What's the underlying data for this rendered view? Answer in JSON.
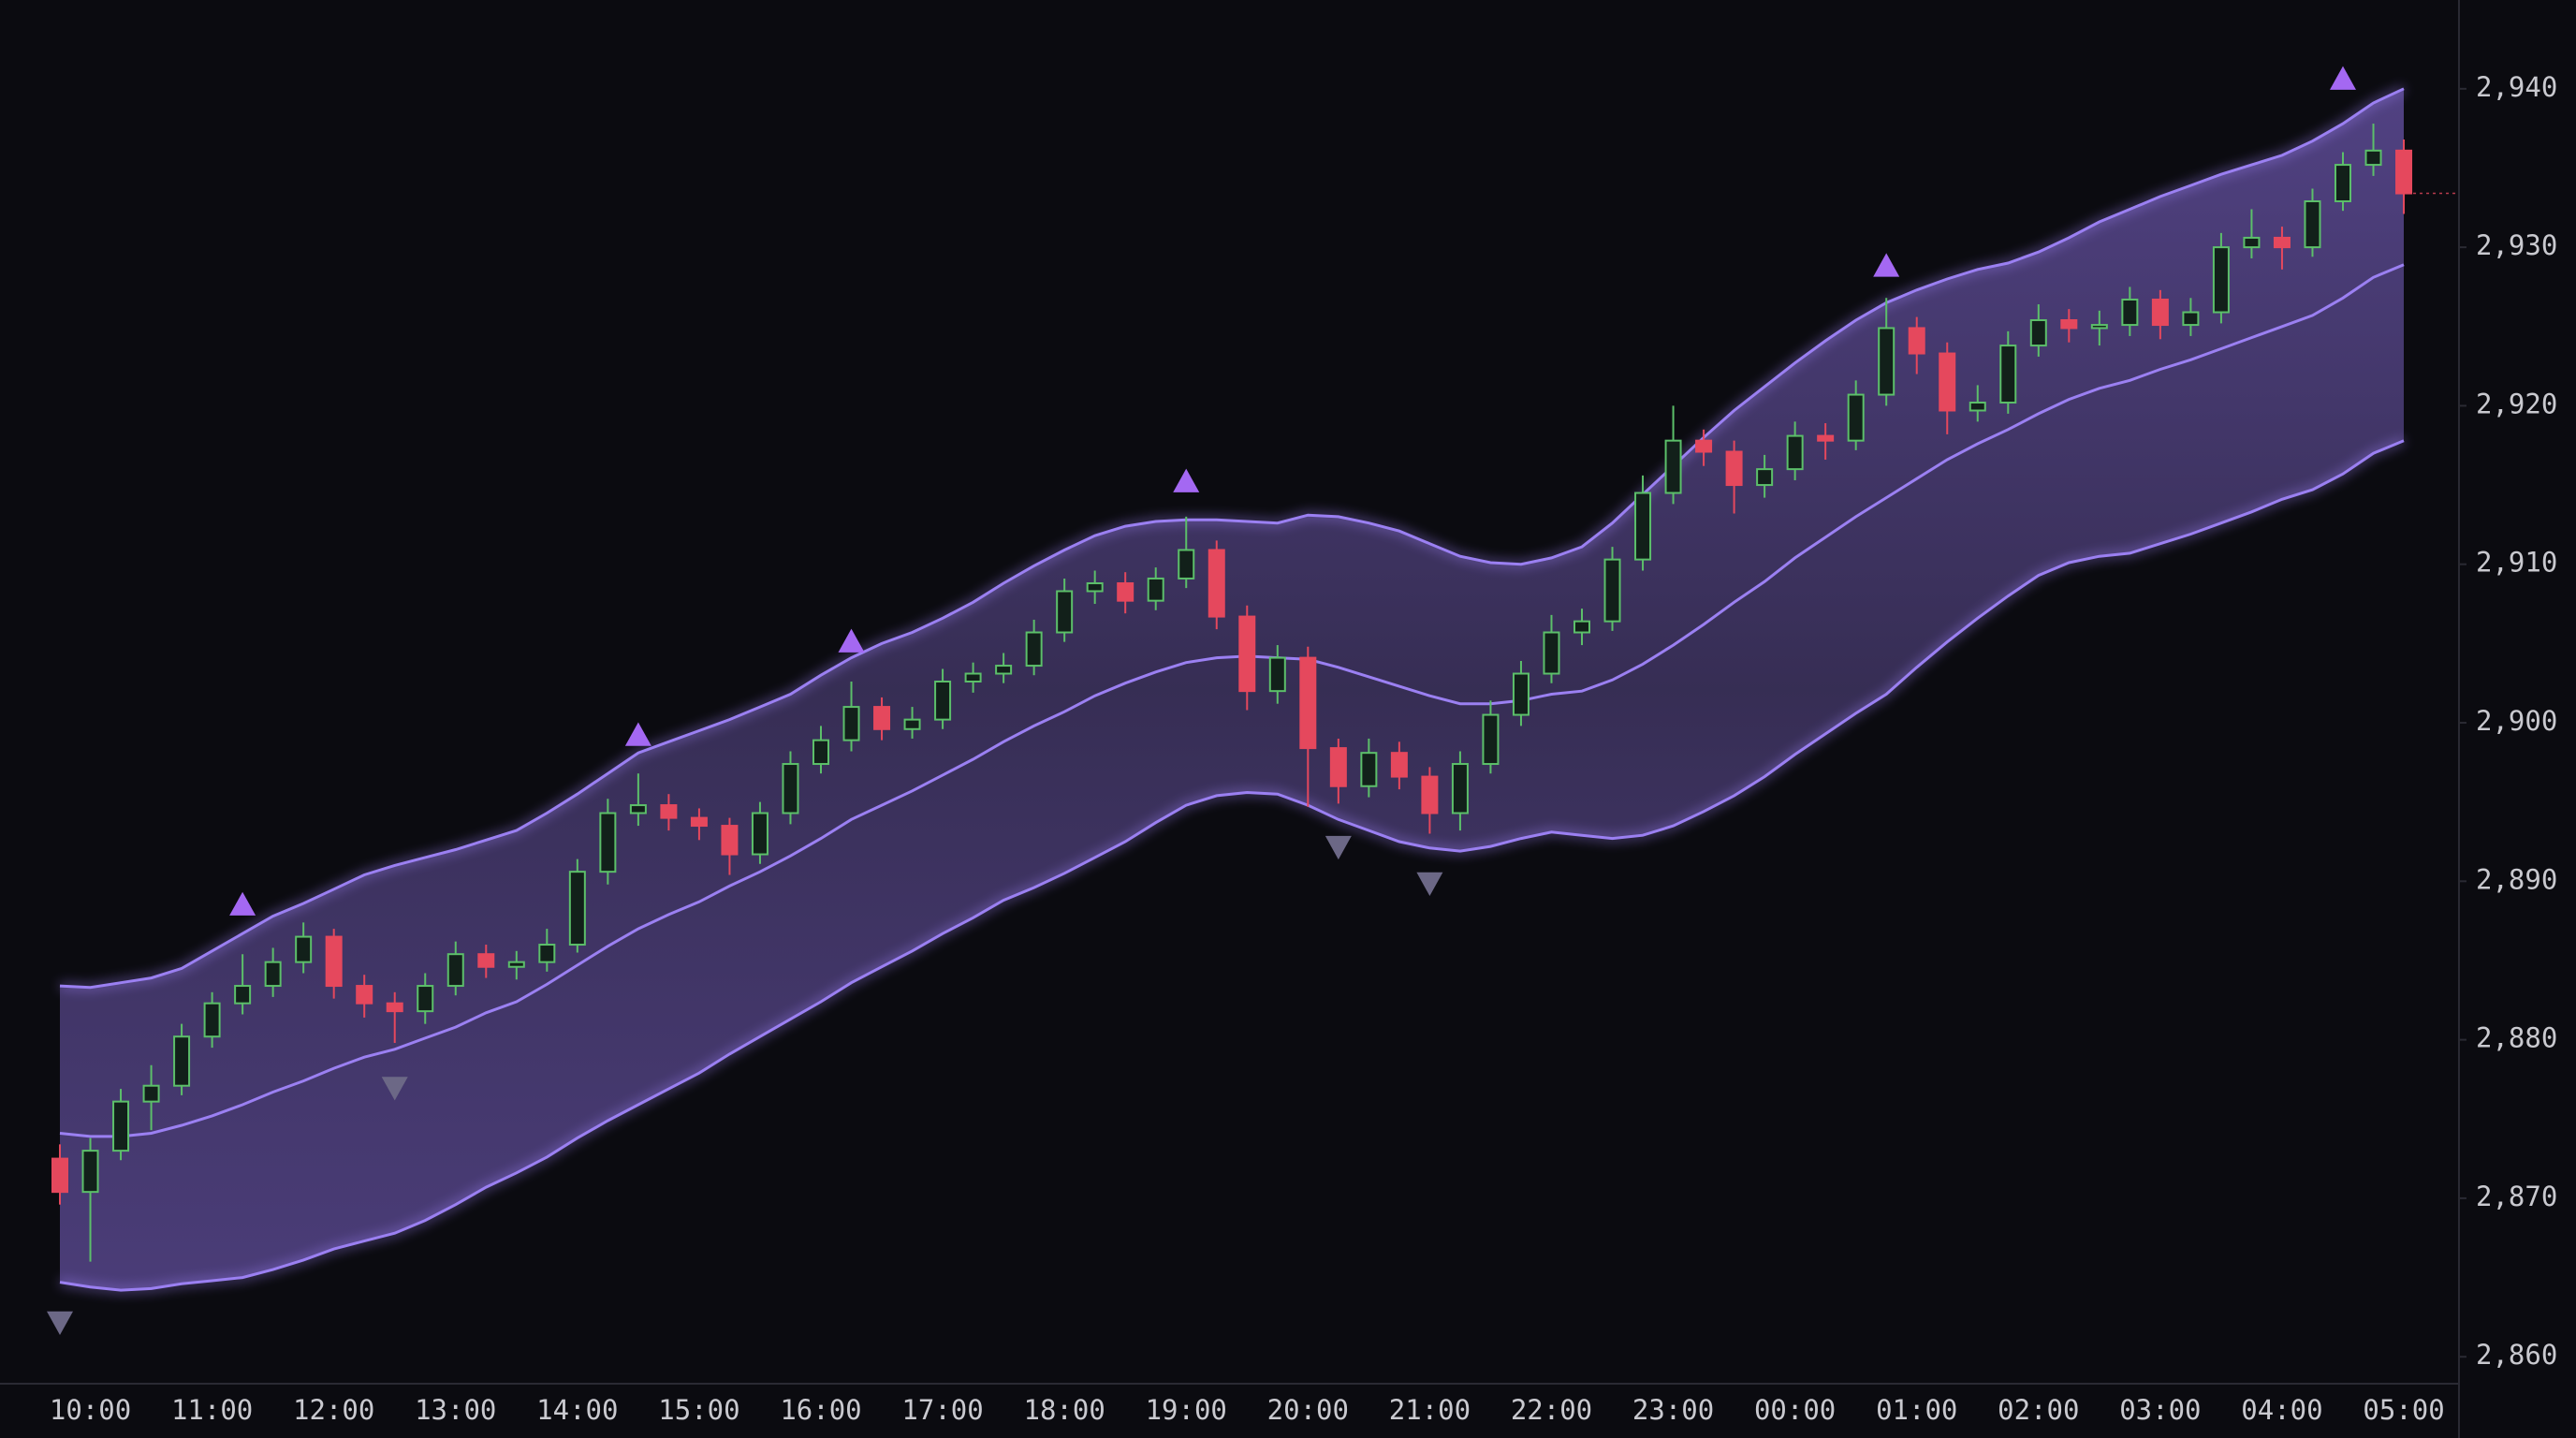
{
  "chart_data": {
    "type": "candlestick",
    "categories": [
      null,
      "10:00",
      null,
      null,
      null,
      "11:00",
      null,
      null,
      null,
      "12:00",
      null,
      null,
      null,
      "13:00",
      null,
      null,
      null,
      "14:00",
      null,
      null,
      null,
      "15:00",
      null,
      null,
      null,
      "16:00",
      null,
      null,
      null,
      "17:00",
      null,
      null,
      null,
      "18:00",
      null,
      null,
      null,
      "19:00",
      null,
      null,
      null,
      "20:00",
      null,
      null,
      null,
      "21:00",
      null,
      null,
      null,
      "22:00",
      null,
      null,
      null,
      "23:00",
      null,
      null,
      null,
      "00:00",
      null,
      null,
      null,
      "01:00",
      null,
      null,
      null,
      "02:00",
      null,
      null,
      null,
      "03:00",
      null,
      null,
      null,
      "04:00",
      null,
      null,
      null,
      "05:00"
    ],
    "open": [
      2872.5,
      2870.4,
      2873.0,
      2876.1,
      2877.1,
      2880.2,
      2882.3,
      2883.4,
      2884.9,
      2886.5,
      2883.4,
      2882.3,
      2881.8,
      2883.4,
      2885.4,
      2884.6,
      2884.9,
      2886.0,
      2890.6,
      2894.3,
      2894.8,
      2894.0,
      2893.5,
      2891.7,
      2894.3,
      2897.4,
      2898.9,
      2901.0,
      2899.6,
      2900.2,
      2902.6,
      2903.1,
      2903.6,
      2905.7,
      2908.3,
      2908.8,
      2907.7,
      2909.1,
      2910.9,
      2906.7,
      2902.0,
      2904.1,
      2898.4,
      2896.0,
      2898.1,
      2896.6,
      2894.3,
      2897.4,
      2900.5,
      2903.1,
      2905.7,
      2906.4,
      2910.3,
      2914.5,
      2917.8,
      2917.1,
      2915.0,
      2916.0,
      2918.1,
      2917.8,
      2920.7,
      2924.9,
      2923.3,
      2919.7,
      2920.2,
      2923.8,
      2925.4,
      2924.9,
      2925.1,
      2926.7,
      2925.1,
      2925.9,
      2930.0,
      2930.6,
      2930.0,
      2932.9,
      2935.2,
      2936.1
    ],
    "high": [
      2873.4,
      2873.8,
      2876.9,
      2878.4,
      2881.0,
      2883.0,
      2885.4,
      2885.8,
      2887.4,
      2887.0,
      2884.1,
      2883.0,
      2884.2,
      2886.2,
      2886.0,
      2885.6,
      2887.0,
      2891.4,
      2895.2,
      2896.8,
      2895.5,
      2894.6,
      2894.0,
      2895.0,
      2898.2,
      2899.8,
      2902.6,
      2901.6,
      2901.0,
      2903.4,
      2903.8,
      2904.4,
      2906.5,
      2909.1,
      2909.6,
      2909.5,
      2909.8,
      2913.0,
      2911.5,
      2907.4,
      2904.9,
      2904.8,
      2899.0,
      2899.0,
      2898.8,
      2897.2,
      2898.2,
      2901.4,
      2903.9,
      2906.8,
      2907.2,
      2911.1,
      2915.6,
      2920.0,
      2918.5,
      2917.8,
      2916.9,
      2919.0,
      2918.9,
      2921.6,
      2926.8,
      2925.6,
      2924.0,
      2921.3,
      2924.7,
      2926.4,
      2926.1,
      2926.0,
      2927.5,
      2927.3,
      2926.8,
      2930.9,
      2932.4,
      2931.3,
      2933.7,
      2936.0,
      2937.8,
      2936.8
    ],
    "low": [
      2869.6,
      2866.0,
      2872.4,
      2874.3,
      2876.5,
      2879.5,
      2881.6,
      2882.7,
      2884.2,
      2882.6,
      2881.4,
      2879.8,
      2881.0,
      2882.8,
      2883.9,
      2883.8,
      2884.3,
      2885.5,
      2889.8,
      2893.5,
      2893.2,
      2892.6,
      2890.4,
      2891.1,
      2893.6,
      2896.8,
      2898.2,
      2898.9,
      2899.0,
      2899.6,
      2901.9,
      2902.5,
      2903.0,
      2905.1,
      2907.5,
      2906.9,
      2907.1,
      2908.5,
      2905.9,
      2900.8,
      2901.2,
      2894.7,
      2894.9,
      2895.3,
      2895.8,
      2893.0,
      2893.2,
      2896.8,
      2899.8,
      2902.5,
      2904.9,
      2905.8,
      2909.6,
      2913.8,
      2916.2,
      2913.2,
      2914.2,
      2915.3,
      2916.6,
      2917.2,
      2920.0,
      2922.0,
      2918.2,
      2919.0,
      2919.5,
      2923.1,
      2924.0,
      2923.8,
      2924.4,
      2924.2,
      2924.4,
      2925.2,
      2929.3,
      2928.6,
      2929.4,
      2932.3,
      2934.5,
      2932.1
    ],
    "close": [
      2870.4,
      2873.0,
      2876.1,
      2877.1,
      2880.2,
      2882.3,
      2883.4,
      2884.9,
      2886.5,
      2883.4,
      2882.3,
      2881.8,
      2883.4,
      2885.4,
      2884.6,
      2884.9,
      2886.0,
      2890.6,
      2894.3,
      2894.8,
      2894.0,
      2893.5,
      2891.7,
      2894.3,
      2897.4,
      2898.9,
      2901.0,
      2899.6,
      2900.2,
      2902.6,
      2903.1,
      2903.6,
      2905.7,
      2908.3,
      2908.8,
      2907.7,
      2909.1,
      2910.9,
      2906.7,
      2902.0,
      2904.1,
      2898.4,
      2896.0,
      2898.1,
      2896.6,
      2894.3,
      2897.4,
      2900.5,
      2903.1,
      2905.7,
      2906.4,
      2910.3,
      2914.5,
      2917.8,
      2917.1,
      2915.0,
      2916.0,
      2918.1,
      2917.8,
      2920.7,
      2924.9,
      2923.3,
      2919.7,
      2920.2,
      2923.8,
      2925.4,
      2924.9,
      2925.1,
      2926.7,
      2925.1,
      2925.9,
      2930.0,
      2930.6,
      2930.0,
      2932.9,
      2935.2,
      2936.1,
      2933.4
    ],
    "upper_band": [
      2883.4,
      2883.3,
      2883.6,
      2883.9,
      2884.5,
      2885.6,
      2886.7,
      2887.8,
      2888.6,
      2889.5,
      2890.4,
      2891.0,
      2891.5,
      2892.0,
      2892.6,
      2893.2,
      2894.3,
      2895.5,
      2896.8,
      2898.1,
      2898.8,
      2899.5,
      2900.2,
      2901.0,
      2901.8,
      2903.0,
      2904.1,
      2905.0,
      2905.7,
      2906.6,
      2907.6,
      2908.8,
      2909.9,
      2910.9,
      2911.8,
      2912.4,
      2912.7,
      2912.8,
      2912.8,
      2912.7,
      2912.6,
      2913.1,
      2913.0,
      2912.6,
      2912.1,
      2911.3,
      2910.5,
      2910.1,
      2910.0,
      2910.4,
      2911.1,
      2912.6,
      2914.4,
      2916.2,
      2918.0,
      2919.7,
      2921.2,
      2922.7,
      2924.1,
      2925.4,
      2926.5,
      2927.3,
      2928.0,
      2928.6,
      2929.0,
      2929.7,
      2930.6,
      2931.6,
      2932.4,
      2933.2,
      2933.9,
      2934.6,
      2935.2,
      2935.8,
      2936.7,
      2937.8,
      2939.1,
      2940.0
    ],
    "middle_band": [
      2874.1,
      2873.9,
      2873.9,
      2874.1,
      2874.6,
      2875.2,
      2875.9,
      2876.7,
      2877.4,
      2878.2,
      2878.9,
      2879.4,
      2880.1,
      2880.8,
      2881.7,
      2882.4,
      2883.5,
      2884.7,
      2885.9,
      2887.0,
      2887.9,
      2888.7,
      2889.7,
      2890.6,
      2891.6,
      2892.7,
      2893.9,
      2894.8,
      2895.7,
      2896.7,
      2897.7,
      2898.8,
      2899.8,
      2900.7,
      2901.7,
      2902.5,
      2903.2,
      2903.8,
      2904.1,
      2904.2,
      2904.1,
      2904.0,
      2903.5,
      2902.9,
      2902.3,
      2901.7,
      2901.2,
      2901.2,
      2901.4,
      2901.8,
      2902.0,
      2902.7,
      2903.7,
      2904.9,
      2906.2,
      2907.6,
      2908.9,
      2910.4,
      2911.7,
      2913.0,
      2914.2,
      2915.4,
      2916.6,
      2917.6,
      2918.5,
      2919.5,
      2920.4,
      2921.1,
      2921.6,
      2922.3,
      2922.9,
      2923.6,
      2924.3,
      2925.0,
      2925.7,
      2926.8,
      2928.1,
      2928.9
    ],
    "lower_band": [
      2864.7,
      2864.4,
      2864.2,
      2864.3,
      2864.6,
      2864.8,
      2865.0,
      2865.5,
      2866.1,
      2866.8,
      2867.3,
      2867.8,
      2868.6,
      2869.6,
      2870.7,
      2871.6,
      2872.6,
      2873.8,
      2874.9,
      2875.9,
      2876.9,
      2877.9,
      2879.1,
      2880.2,
      2881.3,
      2882.4,
      2883.6,
      2884.6,
      2885.6,
      2886.7,
      2887.7,
      2888.8,
      2889.6,
      2890.5,
      2891.5,
      2892.5,
      2893.7,
      2894.8,
      2895.4,
      2895.6,
      2895.5,
      2894.8,
      2893.9,
      2893.2,
      2892.5,
      2892.1,
      2891.9,
      2892.2,
      2892.7,
      2893.1,
      2892.9,
      2892.7,
      2892.9,
      2893.5,
      2894.4,
      2895.4,
      2896.6,
      2898.0,
      2899.3,
      2900.6,
      2901.8,
      2903.5,
      2905.1,
      2906.6,
      2908.0,
      2909.3,
      2910.1,
      2910.5,
      2910.7,
      2911.3,
      2911.9,
      2912.6,
      2913.3,
      2914.1,
      2914.7,
      2915.7,
      2917.0,
      2917.8
    ],
    "signals_up": [
      null,
      null,
      null,
      null,
      null,
      null,
      2888.5,
      null,
      null,
      null,
      null,
      null,
      null,
      null,
      null,
      null,
      null,
      null,
      null,
      2899.2,
      null,
      null,
      null,
      null,
      null,
      null,
      2905.1,
      null,
      null,
      null,
      null,
      null,
      null,
      null,
      null,
      null,
      null,
      2915.2,
      null,
      null,
      null,
      null,
      null,
      null,
      null,
      null,
      null,
      null,
      null,
      null,
      null,
      null,
      null,
      null,
      null,
      null,
      null,
      null,
      null,
      null,
      2928.8,
      null,
      null,
      null,
      null,
      null,
      null,
      null,
      null,
      null,
      null,
      null,
      null,
      null,
      null,
      2940.6,
      null,
      null
    ],
    "signals_down": [
      2862.2,
      null,
      null,
      null,
      null,
      null,
      null,
      null,
      null,
      null,
      null,
      2877.0,
      null,
      null,
      null,
      null,
      null,
      null,
      null,
      null,
      null,
      null,
      null,
      null,
      null,
      null,
      null,
      null,
      null,
      null,
      null,
      null,
      null,
      null,
      null,
      null,
      null,
      null,
      null,
      null,
      null,
      null,
      2892.2,
      null,
      null,
      2889.9,
      null,
      null,
      null,
      null,
      null,
      null,
      null,
      null,
      null,
      null,
      null,
      null,
      null,
      null,
      null,
      null,
      null,
      null,
      null,
      null,
      null,
      null,
      null,
      null,
      null,
      null,
      null,
      null,
      null,
      null,
      null,
      null
    ],
    "up_color": "#5cbf6a",
    "down_color": "#e5485d",
    "band_color": "#9b80f2",
    "signal_up_color": "#a468f2",
    "signal_down_color": "#6c6886",
    "ylim": [
      2858.3,
      2945.6
    ],
    "yticks": [
      {
        "value": 2860,
        "label": "2,860"
      },
      {
        "value": 2870,
        "label": "2,870"
      },
      {
        "value": 2880,
        "label": "2,880"
      },
      {
        "value": 2890,
        "label": "2,890"
      },
      {
        "value": 2900,
        "label": "2,900"
      },
      {
        "value": 2910,
        "label": "2,910"
      },
      {
        "value": 2920,
        "label": "2,920"
      },
      {
        "value": 2930,
        "label": "2,930"
      },
      {
        "value": 2940,
        "label": "2,940"
      }
    ]
  }
}
